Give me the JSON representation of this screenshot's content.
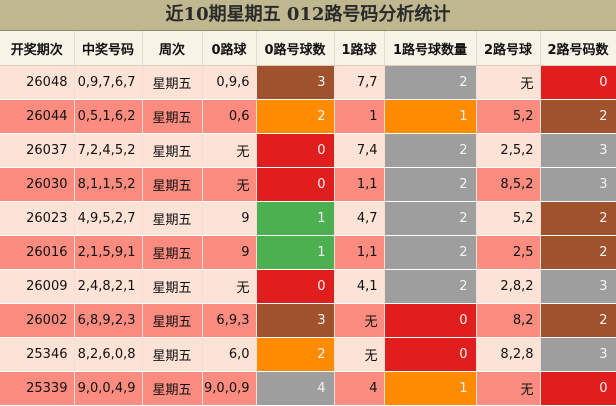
{
  "title": "近10期星期五 012路号码分析统计",
  "headers": [
    "开奖期次",
    "中奖号码",
    "周次",
    "0路球",
    "0路号球数",
    "1路球",
    "1路号球数量",
    "2路号球",
    "2路号码数"
  ],
  "colors": {
    "brown": "#a0522d",
    "orange": "#ff8c00",
    "red": "#e01e1e",
    "green": "#4caf50",
    "gray": "#9e9e9e",
    "row_light": "#fde2d6",
    "row_dark": "#fb8c7f"
  },
  "rows": [
    {
      "issue": "26048",
      "numbers": "0,9,7,6,7",
      "weekday": "星期五",
      "r0_balls": "0,9,6",
      "r0_count": "3",
      "r0_color": "brown",
      "r1_balls": "7,7",
      "r1_count": "2",
      "r1_color": "gray",
      "r2_balls": "无",
      "r2_count": "0",
      "r2_color": "red"
    },
    {
      "issue": "26044",
      "numbers": "0,5,1,6,2",
      "weekday": "星期五",
      "r0_balls": "0,6",
      "r0_count": "2",
      "r0_color": "orange",
      "r1_balls": "1",
      "r1_count": "1",
      "r1_color": "orange",
      "r2_balls": "5,2",
      "r2_count": "2",
      "r2_color": "brown"
    },
    {
      "issue": "26037",
      "numbers": "7,2,4,5,2",
      "weekday": "星期五",
      "r0_balls": "无",
      "r0_count": "0",
      "r0_color": "red",
      "r1_balls": "7,4",
      "r1_count": "2",
      "r1_color": "gray",
      "r2_balls": "2,5,2",
      "r2_count": "3",
      "r2_color": "gray"
    },
    {
      "issue": "26030",
      "numbers": "8,1,1,5,2",
      "weekday": "星期五",
      "r0_balls": "无",
      "r0_count": "0",
      "r0_color": "red",
      "r1_balls": "1,1",
      "r1_count": "2",
      "r1_color": "gray",
      "r2_balls": "8,5,2",
      "r2_count": "3",
      "r2_color": "gray"
    },
    {
      "issue": "26023",
      "numbers": "4,9,5,2,7",
      "weekday": "星期五",
      "r0_balls": "9",
      "r0_count": "1",
      "r0_color": "green",
      "r1_balls": "4,7",
      "r1_count": "2",
      "r1_color": "gray",
      "r2_balls": "5,2",
      "r2_count": "2",
      "r2_color": "brown"
    },
    {
      "issue": "26016",
      "numbers": "2,1,5,9,1",
      "weekday": "星期五",
      "r0_balls": "9",
      "r0_count": "1",
      "r0_color": "green",
      "r1_balls": "1,1",
      "r1_count": "2",
      "r1_color": "gray",
      "r2_balls": "2,5",
      "r2_count": "2",
      "r2_color": "brown"
    },
    {
      "issue": "26009",
      "numbers": "2,4,8,2,1",
      "weekday": "星期五",
      "r0_balls": "无",
      "r0_count": "0",
      "r0_color": "red",
      "r1_balls": "4,1",
      "r1_count": "2",
      "r1_color": "gray",
      "r2_balls": "2,8,2",
      "r2_count": "3",
      "r2_color": "gray"
    },
    {
      "issue": "26002",
      "numbers": "6,8,9,2,3",
      "weekday": "星期五",
      "r0_balls": "6,9,3",
      "r0_count": "3",
      "r0_color": "brown",
      "r1_balls": "无",
      "r1_count": "0",
      "r1_color": "red",
      "r2_balls": "8,2",
      "r2_count": "2",
      "r2_color": "brown"
    },
    {
      "issue": "25346",
      "numbers": "8,2,6,0,8",
      "weekday": "星期五",
      "r0_balls": "6,0",
      "r0_count": "2",
      "r0_color": "orange",
      "r1_balls": "无",
      "r1_count": "0",
      "r1_color": "red",
      "r2_balls": "8,2,8",
      "r2_count": "3",
      "r2_color": "gray"
    },
    {
      "issue": "25339",
      "numbers": "9,0,0,4,9",
      "weekday": "星期五",
      "r0_balls": "9,0,0,9",
      "r0_count": "4",
      "r0_color": "gray",
      "r1_balls": "4",
      "r1_count": "1",
      "r1_color": "orange",
      "r2_balls": "无",
      "r2_count": "0",
      "r2_color": "red"
    }
  ]
}
